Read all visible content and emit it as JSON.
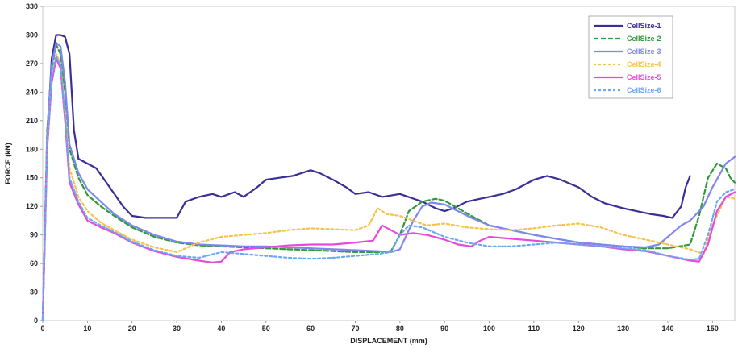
{
  "chart_data": {
    "type": "line",
    "title": "",
    "xlabel": "DISPLACEMENT (mm)",
    "ylabel": "FORCE (kN)",
    "xlim": [
      0,
      155
    ],
    "ylim": [
      0,
      330
    ],
    "xticks": [
      0,
      10,
      20,
      30,
      40,
      50,
      60,
      70,
      80,
      90,
      100,
      110,
      120,
      130,
      140,
      150
    ],
    "yticks": [
      0,
      30,
      60,
      90,
      120,
      150,
      180,
      210,
      240,
      270,
      300,
      330
    ],
    "grid": false,
    "legend_position": "top-right",
    "series": [
      {
        "name": "CellSize-1",
        "color": "#3a2f96",
        "dash": "solid",
        "x": [
          0,
          1,
          2,
          3,
          4,
          5,
          6,
          7,
          8,
          10,
          12,
          15,
          18,
          20,
          23,
          26,
          30,
          32,
          35,
          38,
          40,
          43,
          45,
          48,
          50,
          53,
          56,
          58,
          60,
          62,
          65,
          68,
          70,
          73,
          76,
          80,
          85,
          88,
          90,
          92,
          95,
          98,
          100,
          103,
          106,
          110,
          113,
          116,
          120,
          123,
          126,
          130,
          133,
          136,
          139,
          141,
          143,
          144,
          145
        ],
        "y": [
          0,
          190,
          275,
          300,
          300,
          298,
          280,
          200,
          170,
          165,
          160,
          140,
          120,
          110,
          108,
          108,
          108,
          125,
          130,
          133,
          130,
          135,
          130,
          140,
          148,
          150,
          152,
          155,
          158,
          155,
          148,
          140,
          133,
          135,
          130,
          133,
          125,
          118,
          115,
          118,
          125,
          128,
          130,
          133,
          138,
          148,
          152,
          148,
          140,
          130,
          123,
          118,
          115,
          112,
          110,
          108,
          120,
          140,
          152
        ]
      },
      {
        "name": "CellSize-2",
        "color": "#2f9a36",
        "dash": "6 3",
        "x": [
          0,
          1,
          2,
          3,
          4,
          5,
          6,
          8,
          10,
          13,
          16,
          20,
          25,
          30,
          35,
          40,
          45,
          50,
          55,
          60,
          65,
          70,
          75,
          78,
          80,
          82,
          85,
          88,
          90,
          93,
          96,
          100,
          105,
          110,
          115,
          120,
          125,
          130,
          135,
          140,
          145,
          147,
          149,
          151,
          153,
          154,
          155
        ],
        "y": [
          0,
          200,
          265,
          290,
          280,
          240,
          180,
          150,
          132,
          120,
          110,
          98,
          88,
          82,
          79,
          78,
          77,
          76,
          75,
          74,
          73,
          72,
          72,
          73,
          90,
          115,
          125,
          128,
          126,
          118,
          110,
          100,
          95,
          90,
          86,
          82,
          80,
          78,
          76,
          76,
          80,
          110,
          150,
          165,
          160,
          150,
          145
        ]
      },
      {
        "name": "CellSize-3",
        "color": "#7f86ee",
        "dash": "solid",
        "x": [
          0,
          1,
          2,
          3,
          4,
          5,
          6,
          8,
          10,
          13,
          16,
          20,
          25,
          30,
          35,
          40,
          45,
          50,
          55,
          60,
          65,
          70,
          75,
          78,
          80,
          83,
          85,
          87,
          90,
          93,
          96,
          100,
          105,
          110,
          115,
          120,
          125,
          130,
          135,
          138,
          140,
          143,
          145,
          148,
          150,
          153,
          155
        ],
        "y": [
          0,
          195,
          268,
          292,
          288,
          250,
          185,
          155,
          138,
          125,
          112,
          100,
          90,
          83,
          80,
          79,
          78,
          78,
          77,
          76,
          75,
          74,
          73,
          72,
          75,
          105,
          120,
          124,
          122,
          115,
          108,
          100,
          95,
          90,
          86,
          82,
          80,
          78,
          77,
          80,
          88,
          100,
          105,
          120,
          140,
          165,
          172
        ]
      },
      {
        "name": "CellSize-4",
        "color": "#f5c24a",
        "dash": "3 3",
        "x": [
          0,
          1,
          2,
          3,
          4,
          5,
          6,
          8,
          10,
          13,
          16,
          20,
          25,
          30,
          35,
          40,
          45,
          50,
          55,
          60,
          65,
          70,
          73,
          75,
          77,
          80,
          83,
          86,
          90,
          95,
          100,
          105,
          110,
          115,
          120,
          125,
          130,
          135,
          140,
          145,
          148,
          150,
          153,
          155
        ],
        "y": [
          0,
          185,
          255,
          280,
          270,
          220,
          160,
          130,
          115,
          103,
          95,
          85,
          77,
          72,
          82,
          88,
          90,
          92,
          95,
          97,
          96,
          95,
          100,
          118,
          112,
          110,
          105,
          100,
          102,
          98,
          96,
          95,
          97,
          100,
          102,
          98,
          90,
          85,
          80,
          75,
          70,
          100,
          130,
          128
        ]
      },
      {
        "name": "CellSize-5",
        "color": "#e84ad8",
        "dash": "solid",
        "x": [
          0,
          1,
          2,
          3,
          4,
          5,
          6,
          8,
          10,
          13,
          16,
          20,
          25,
          30,
          35,
          38,
          40,
          42,
          45,
          50,
          55,
          60,
          65,
          70,
          74,
          76,
          78,
          80,
          83,
          86,
          90,
          93,
          96,
          98,
          100,
          105,
          110,
          115,
          120,
          125,
          130,
          135,
          140,
          145,
          147,
          149,
          151,
          153,
          155
        ],
        "y": [
          0,
          180,
          250,
          275,
          265,
          210,
          145,
          122,
          105,
          98,
          92,
          82,
          73,
          67,
          63,
          61,
          62,
          72,
          75,
          77,
          79,
          80,
          80,
          82,
          84,
          100,
          95,
          90,
          92,
          90,
          85,
          80,
          78,
          84,
          88,
          86,
          84,
          82,
          80,
          78,
          75,
          73,
          68,
          63,
          62,
          80,
          115,
          130,
          135
        ]
      },
      {
        "name": "CellSize-6",
        "color": "#6aa8f0",
        "dash": "3 3",
        "x": [
          0,
          1,
          2,
          3,
          4,
          5,
          6,
          8,
          10,
          13,
          16,
          20,
          25,
          30,
          35,
          40,
          45,
          50,
          55,
          60,
          65,
          70,
          75,
          78,
          80,
          82,
          85,
          88,
          90,
          95,
          100,
          105,
          110,
          115,
          120,
          125,
          130,
          135,
          140,
          145,
          147,
          149,
          151,
          153,
          155
        ],
        "y": [
          0,
          182,
          255,
          278,
          268,
          215,
          150,
          125,
          108,
          100,
          93,
          83,
          74,
          68,
          66,
          72,
          70,
          68,
          66,
          65,
          66,
          68,
          70,
          72,
          90,
          100,
          98,
          92,
          88,
          82,
          78,
          78,
          80,
          82,
          80,
          78,
          76,
          74,
          68,
          64,
          65,
          90,
          125,
          135,
          138
        ]
      }
    ]
  }
}
